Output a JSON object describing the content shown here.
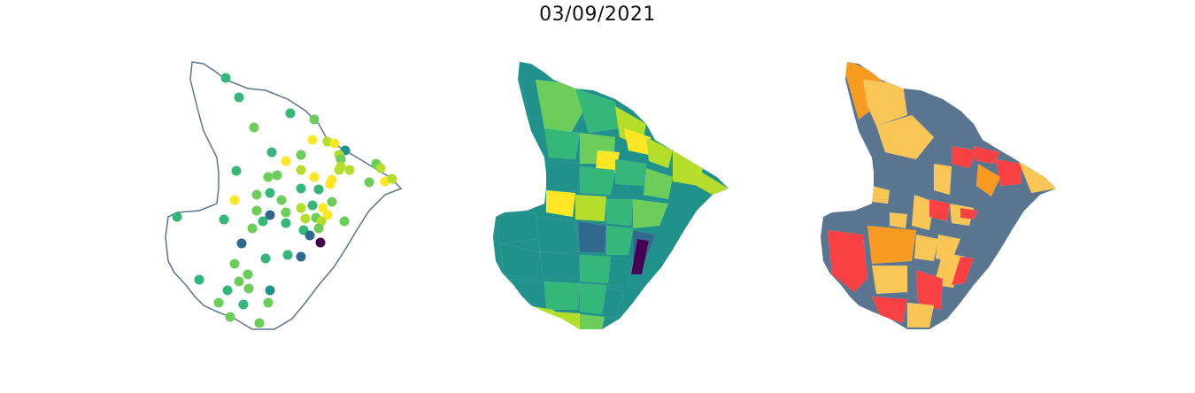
{
  "title": "03/09/2021",
  "colors": {
    "outline": "#5a7590",
    "viridis": [
      "#440154",
      "#31688e",
      "#21918c",
      "#35b779",
      "#6ccd5a",
      "#b5de2b",
      "#fde725"
    ],
    "classes": [
      "#5a7590",
      "#f9c555",
      "#f99b20",
      "#f94144"
    ]
  },
  "panels": [
    {
      "id": "points",
      "type": "point-map"
    },
    {
      "id": "choropleth",
      "type": "choropleth-continuous"
    },
    {
      "id": "classes",
      "type": "choropleth-categorical"
    }
  ]
}
